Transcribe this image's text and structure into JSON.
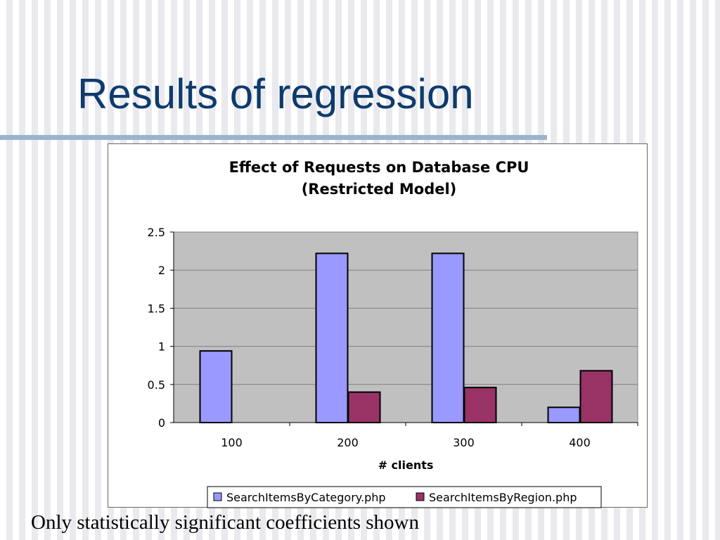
{
  "slide": {
    "title": "Results of regression",
    "footnote": "Only statistically significant coefficients shown"
  },
  "chart_data": {
    "type": "bar",
    "title_lines": [
      "Effect of Requests on Database CPU",
      "(Restricted Model)"
    ],
    "xlabel": "# clients",
    "ylabel": "",
    "categories": [
      "100",
      "200",
      "300",
      "400"
    ],
    "ylim": [
      0,
      2.5
    ],
    "yticks": [
      0,
      0.5,
      1,
      1.5,
      2,
      2.5
    ],
    "ytick_labels": [
      "0",
      "0.5",
      "1",
      "1.5",
      "2",
      "2.5"
    ],
    "grid": true,
    "legend_position": "bottom",
    "series": [
      {
        "name": "SearchItemsByCategory.php",
        "color": "#9999ff",
        "values": [
          0.94,
          2.22,
          2.22,
          0.2
        ]
      },
      {
        "name": "SearchItemsByRegion.php",
        "color": "#993366",
        "values": [
          null,
          0.4,
          0.46,
          0.68
        ]
      }
    ],
    "plot_background": "#c0c0c0"
  }
}
